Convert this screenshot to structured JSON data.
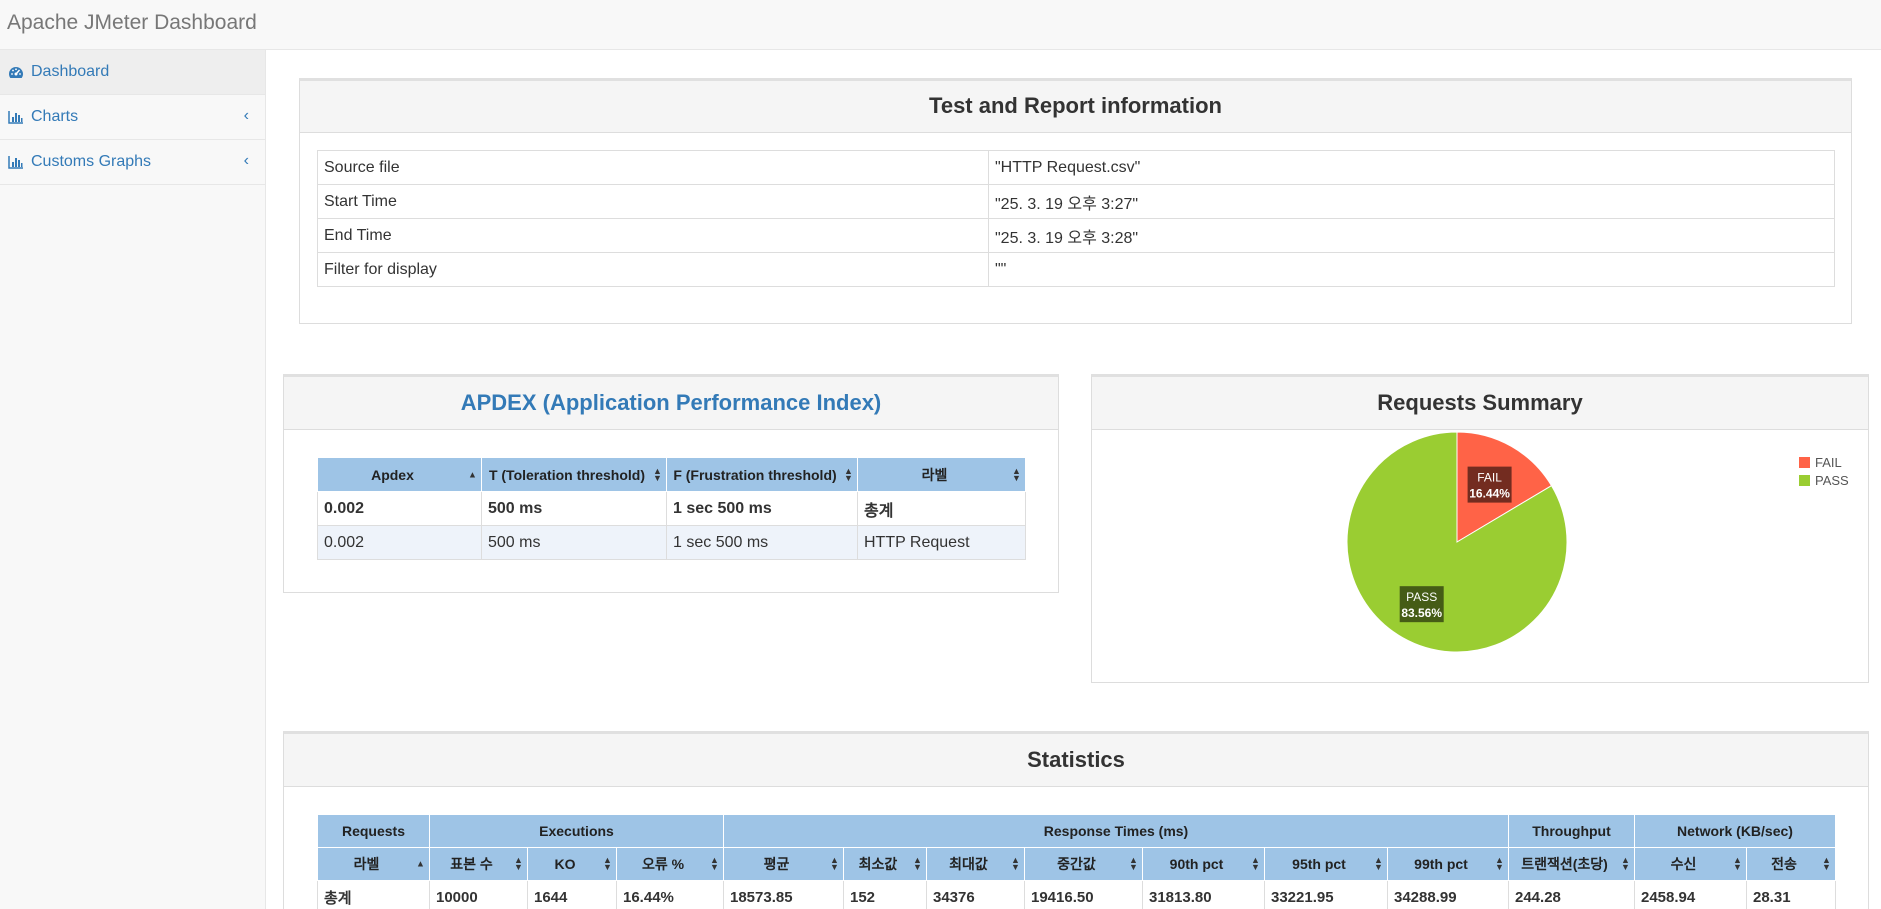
{
  "app": {
    "title": "Apache JMeter Dashboard"
  },
  "sidebar": {
    "items": [
      {
        "label": "Dashboard",
        "icon": "dashboard-icon"
      },
      {
        "label": "Charts",
        "icon": "bar-chart-icon"
      },
      {
        "label": "Customs Graphs",
        "icon": "bar-chart-icon"
      }
    ]
  },
  "test_info": {
    "title": "Test and Report information",
    "rows": [
      {
        "key": "Source file",
        "value": "\"HTTP Request.csv\""
      },
      {
        "key": "Start Time",
        "value": "\"25. 3. 19 오후 3:27\""
      },
      {
        "key": "End Time",
        "value": "\"25. 3. 19 오후 3:28\""
      },
      {
        "key": "Filter for display",
        "value": "\"\""
      }
    ]
  },
  "apdex": {
    "title": "APDEX (Application Performance Index)",
    "headers": [
      "Apdex",
      "T (Toleration threshold)",
      "F (Frustration threshold)",
      "라벨"
    ],
    "rows": [
      [
        "0.002",
        "500 ms",
        "1 sec 500 ms",
        "총계"
      ],
      [
        "0.002",
        "500 ms",
        "1 sec 500 ms",
        "HTTP Request"
      ]
    ]
  },
  "requests_summary": {
    "title": "Requests Summary",
    "chart_data": {
      "type": "pie",
      "categories": [
        "FAIL",
        "PASS"
      ],
      "values": [
        16.44,
        83.56
      ],
      "labels": [
        "16.44%",
        "83.56%"
      ],
      "colors": [
        "#ff6347",
        "#9acd32"
      ],
      "legend": "top-right"
    }
  },
  "statistics": {
    "title": "Statistics",
    "groups": [
      {
        "label": "Requests",
        "span": 1
      },
      {
        "label": "Executions",
        "span": 3
      },
      {
        "label": "Response Times (ms)",
        "span": 7
      },
      {
        "label": "Throughput",
        "span": 1
      },
      {
        "label": "Network (KB/sec)",
        "span": 2
      }
    ],
    "columns": [
      "라벨",
      "표본 수",
      "KO",
      "오류 %",
      "평균",
      "최소값",
      "최대값",
      "중간값",
      "90th pct",
      "95th pct",
      "99th pct",
      "트랜잭션(초당)",
      "수신",
      "전송"
    ],
    "rows": [
      [
        "총계",
        "10000",
        "1644",
        "16.44%",
        "18573.85",
        "152",
        "34376",
        "19416.50",
        "31813.80",
        "33221.95",
        "34288.99",
        "244.28",
        "2458.94",
        "28.31"
      ]
    ]
  }
}
